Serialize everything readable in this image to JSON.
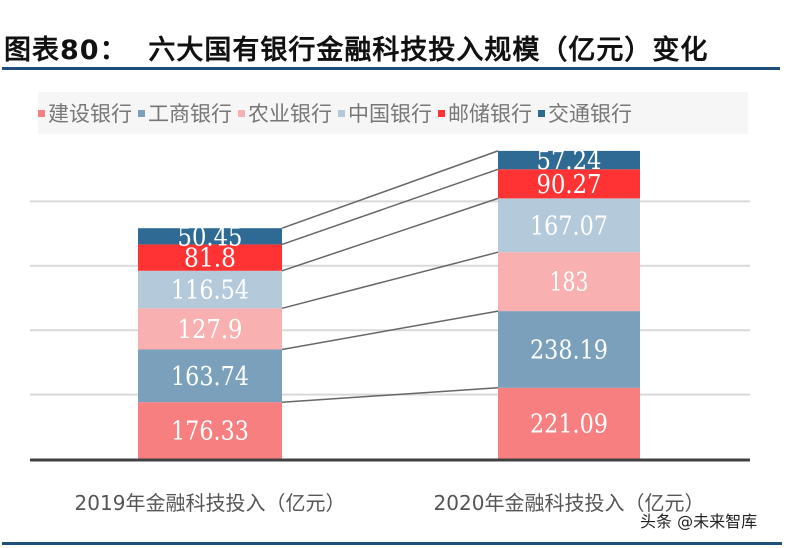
{
  "title": {
    "prefix": "图表80：",
    "text": "六大国有银行金融科技投入规模（亿元）变化"
  },
  "watermark": "头条 @未来智库",
  "chart_data": {
    "type": "bar",
    "stacked": true,
    "title": "六大国有银行金融科技投入规模（亿元）变化",
    "categories": [
      "2019年金融科技投入（亿元）",
      "2020年金融科技投入（亿元）"
    ],
    "series": [
      {
        "name": "建设银行",
        "color": "#f77f7f",
        "values": [
          176.33,
          221.09
        ],
        "labels": [
          "176.33",
          "221.09"
        ]
      },
      {
        "name": "工商银行",
        "color": "#7ba0bb",
        "values": [
          163.74,
          238.19
        ],
        "labels": [
          "163.74",
          "238.19"
        ]
      },
      {
        "name": "农业银行",
        "color": "#f8b0b0",
        "values": [
          127.9,
          183
        ],
        "labels": [
          "127.9",
          "183"
        ]
      },
      {
        "name": "中国银行",
        "color": "#b4c9d9",
        "values": [
          116.54,
          167.07
        ],
        "labels": [
          "116.54",
          "167.07"
        ]
      },
      {
        "name": "邮储银行",
        "color": "#ff3333",
        "values": [
          81.8,
          90.27
        ],
        "labels": [
          "81.8",
          "90.27"
        ]
      },
      {
        "name": "交通银行",
        "color": "#2e6a94",
        "values": [
          50.45,
          57.24
        ],
        "labels": [
          "50.45",
          "57.24"
        ]
      }
    ],
    "ylim": [
      0,
      1000
    ],
    "grid": true,
    "legend_position": "top",
    "series_lines": true
  }
}
